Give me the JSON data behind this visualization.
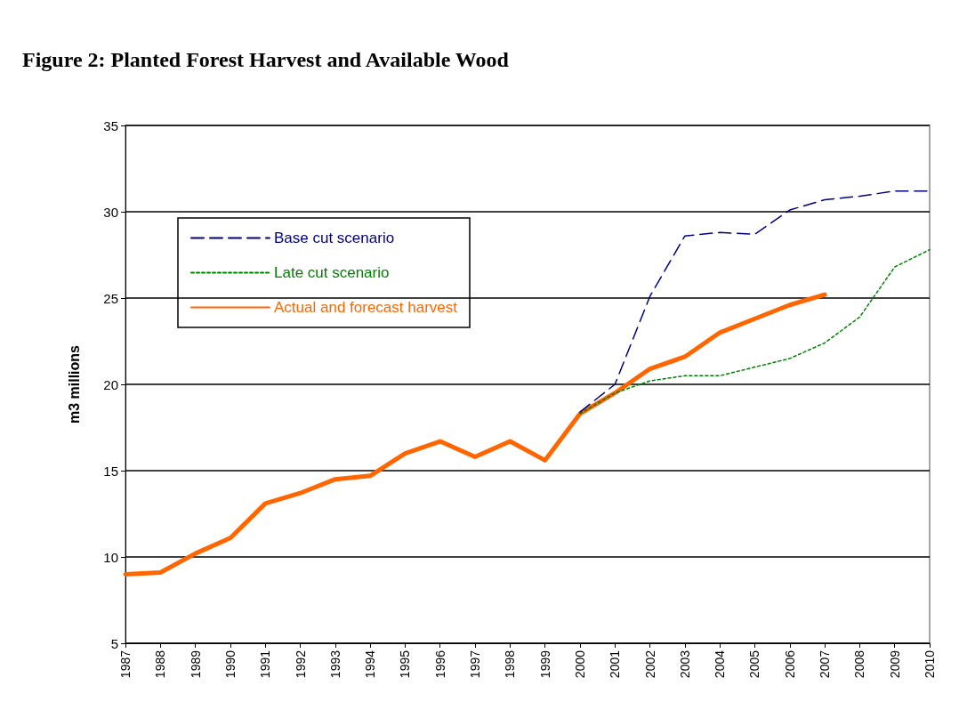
{
  "chart_data": {
    "type": "line",
    "title": "Figure 2: Planted Forest Harvest and Available Wood",
    "ylabel": "m3 millions",
    "categories": [
      "1987",
      "1988",
      "1989",
      "1990",
      "1991",
      "1992",
      "1993",
      "1994",
      "1995",
      "1996",
      "1997",
      "1998",
      "1999",
      "2000",
      "2001",
      "2002",
      "2003",
      "2004",
      "2005",
      "2006",
      "2007",
      "2008",
      "2009",
      "2010"
    ],
    "series": [
      {
        "name": "Base cut scenario",
        "color": "#000080",
        "line_style": "dashed",
        "values": [
          null,
          null,
          null,
          null,
          null,
          null,
          null,
          null,
          null,
          null,
          null,
          null,
          null,
          18.4,
          20.0,
          25.1,
          28.6,
          28.8,
          28.7,
          30.1,
          30.7,
          30.9,
          31.2,
          31.2
        ]
      },
      {
        "name": "Late cut scenario",
        "color": "#008000",
        "line_style": "dotted",
        "values": [
          null,
          null,
          null,
          null,
          null,
          null,
          null,
          null,
          null,
          null,
          null,
          null,
          null,
          18.3,
          19.5,
          20.2,
          20.5,
          20.5,
          21.0,
          21.5,
          22.4,
          23.9,
          26.8,
          27.8
        ]
      },
      {
        "name": "Actual and forecast harvest",
        "color": "#ff6600",
        "line_style": "solid",
        "values": [
          9.0,
          9.1,
          10.2,
          11.1,
          13.1,
          13.7,
          14.5,
          14.7,
          16.0,
          16.7,
          15.8,
          16.7,
          15.6,
          18.3,
          19.5,
          20.9,
          21.6,
          23.0,
          23.8,
          24.6,
          25.2,
          null,
          null,
          null
        ]
      }
    ],
    "ylim": [
      5,
      35
    ],
    "yticks": [
      5,
      10,
      15,
      20,
      25,
      30,
      35
    ],
    "grid": "y",
    "legend": "top left",
    "marker": "none"
  }
}
